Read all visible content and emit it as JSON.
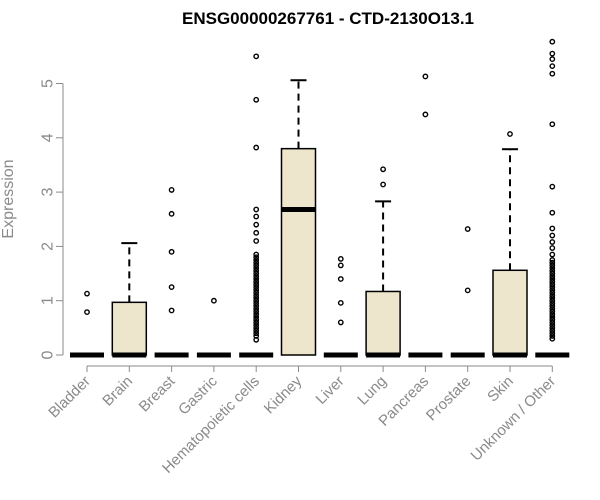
{
  "chart_data": {
    "type": "box",
    "title": "ENSG00000267761 - CTD-2130O13.1",
    "xlabel": "",
    "ylabel": "Expression",
    "ylim": [
      0,
      5.8
    ],
    "yticks": [
      0,
      1,
      2,
      3,
      4,
      5
    ],
    "box_fill": "#ede6cc",
    "categories": [
      "Bladder",
      "Brain",
      "Breast",
      "Gastric",
      "Hematopoietic cells",
      "Kidney",
      "Liver",
      "Lung",
      "Pancreas",
      "Prostate",
      "Skin",
      "Unknown / Other"
    ],
    "boxes": [
      {
        "min": 0,
        "q1": 0,
        "median": 0,
        "q3": 0,
        "max": 0,
        "outliers": [
          1.13,
          0.79
        ]
      },
      {
        "min": 0,
        "q1": 0,
        "median": 0,
        "q3": 0.97,
        "max": 2.06,
        "outliers": []
      },
      {
        "min": 0,
        "q1": 0,
        "median": 0,
        "q3": 0,
        "max": 0,
        "outliers": [
          3.04,
          2.6,
          1.9,
          1.25,
          0.82
        ]
      },
      {
        "min": 0,
        "q1": 0,
        "median": 0,
        "q3": 0,
        "max": 0,
        "outliers": [
          1.0
        ]
      },
      {
        "min": 0,
        "q1": 0,
        "median": 0,
        "q3": 0,
        "max": 0,
        "outliers": [
          5.5,
          4.7,
          3.82,
          2.68,
          2.55,
          2.4,
          2.25,
          2.1,
          1.85,
          1.8,
          1.75,
          1.7,
          1.65,
          1.6,
          1.55,
          1.5,
          1.45,
          1.4,
          1.35,
          1.3,
          1.25,
          1.2,
          1.15,
          1.1,
          1.05,
          1.0,
          0.95,
          0.9,
          0.85,
          0.8,
          0.75,
          0.7,
          0.65,
          0.6,
          0.55,
          0.5,
          0.45,
          0.4,
          0.35,
          0.28
        ]
      },
      {
        "min": 0,
        "q1": 0,
        "median": 2.68,
        "q3": 3.8,
        "max": 5.06,
        "outliers": []
      },
      {
        "min": 0,
        "q1": 0,
        "median": 0,
        "q3": 0,
        "max": 0,
        "outliers": [
          1.77,
          1.65,
          1.4,
          0.96,
          0.6
        ]
      },
      {
        "min": 0,
        "q1": 0,
        "median": 0,
        "q3": 1.17,
        "max": 2.83,
        "outliers": [
          3.42,
          3.14
        ]
      },
      {
        "min": 0,
        "q1": 0,
        "median": 0,
        "q3": 0,
        "max": 0,
        "outliers": [
          5.13,
          4.43
        ]
      },
      {
        "min": 0,
        "q1": 0,
        "median": 0,
        "q3": 0,
        "max": 0,
        "outliers": [
          2.32,
          1.19
        ]
      },
      {
        "min": 0,
        "q1": 0,
        "median": 0,
        "q3": 1.56,
        "max": 3.79,
        "outliers": [
          4.07
        ]
      },
      {
        "min": 0,
        "q1": 0,
        "median": 0,
        "q3": 0,
        "max": 0,
        "outliers": [
          5.77,
          5.55,
          5.45,
          5.32,
          5.18,
          4.25,
          3.1,
          2.62,
          2.33,
          2.2,
          2.08,
          1.97,
          1.85,
          1.75,
          1.7,
          1.65,
          1.6,
          1.55,
          1.5,
          1.45,
          1.4,
          1.35,
          1.3,
          1.25,
          1.2,
          1.15,
          1.1,
          1.05,
          1.0,
          0.95,
          0.9,
          0.85,
          0.8,
          0.75,
          0.7,
          0.65,
          0.6,
          0.55,
          0.5,
          0.45,
          0.4,
          0.35,
          0.3
        ]
      }
    ]
  }
}
